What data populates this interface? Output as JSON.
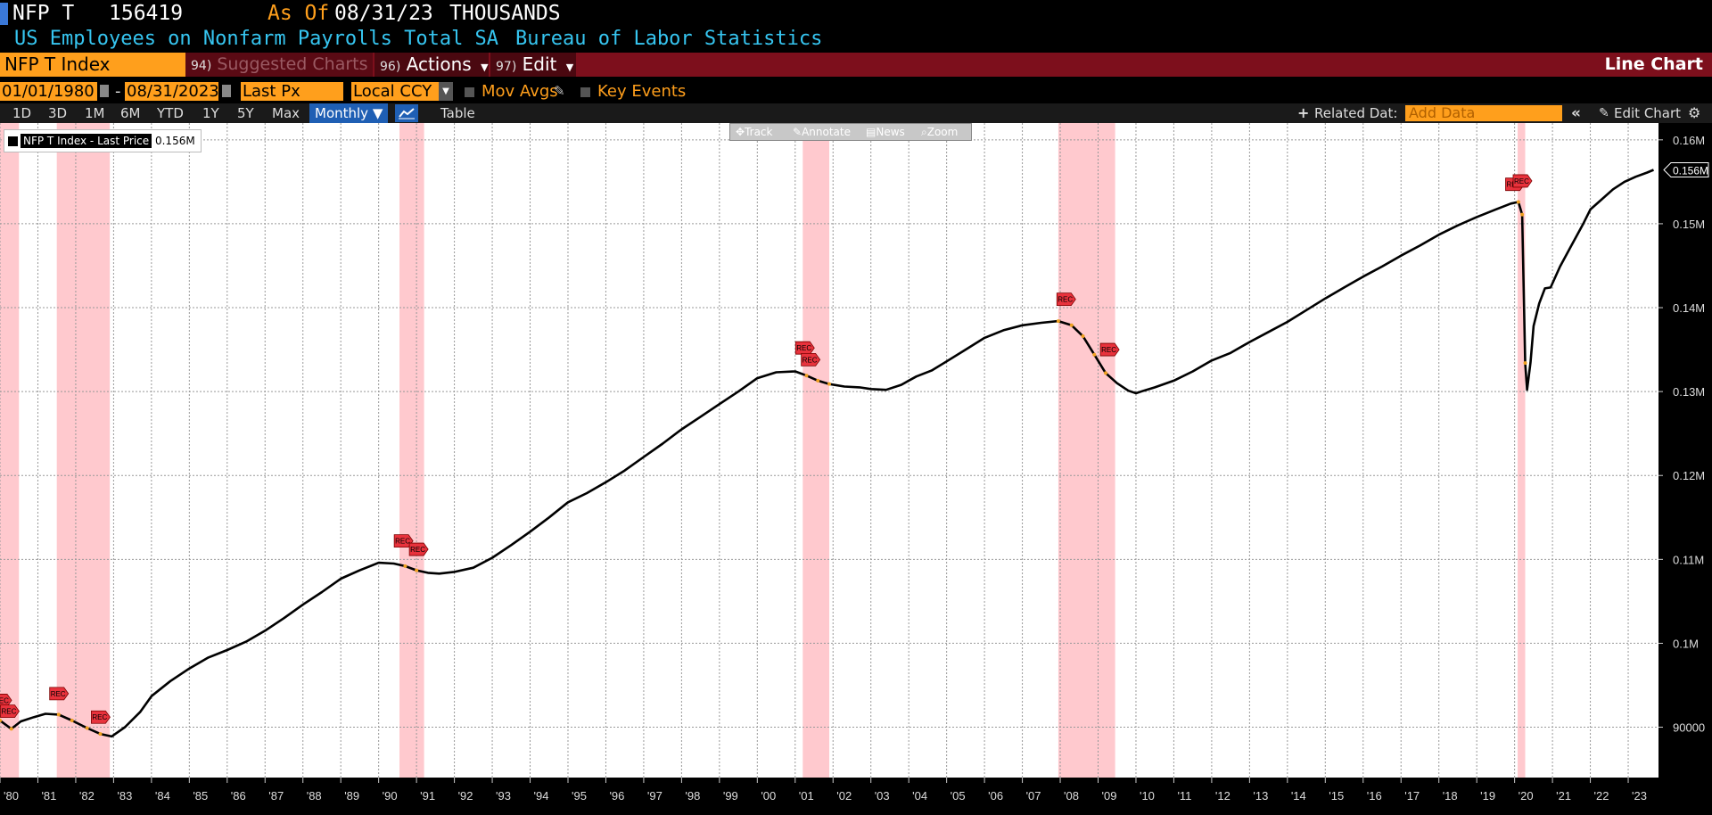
{
  "header": {
    "ticker": "NFP T",
    "value": "156419",
    "as_of_label": "As Of",
    "as_of_date": "08/31/23",
    "units": "THOUSANDS"
  },
  "description": {
    "title": "US Employees on Nonfarm Payrolls Total SA",
    "source": "Bureau of Labor Statistics"
  },
  "toolbar": {
    "ticker_index": "NFP T Index",
    "suggested_num": "94)",
    "suggested_label": "Suggested Charts",
    "actions_num": "96)",
    "actions_label": "Actions",
    "edit_num": "97)",
    "edit_label": "Edit",
    "chart_type": "Line Chart"
  },
  "params": {
    "start_date": "01/01/1980",
    "separator": "-",
    "end_date": "08/31/2023",
    "field": "Last Px",
    "currency": "Local CCY",
    "mov_avgs": "Mov Avgs",
    "key_events": "Key Events"
  },
  "periods": {
    "tabs": [
      "1D",
      "3D",
      "1M",
      "6M",
      "YTD",
      "1Y",
      "5Y",
      "Max"
    ],
    "frequency": "Monthly",
    "table_label": "Table",
    "related_data": "Related Dat:",
    "add_data_placeholder": "Add Data",
    "edit_chart": "Edit Chart"
  },
  "tools": {
    "track": "Track",
    "annotate": "Annotate",
    "news": "News",
    "zoom": "Zoom"
  },
  "legend": {
    "series_name": "NFP T Index - Last Price",
    "last_value": "0.156M"
  },
  "colors": {
    "accent_orange": "#ff9f1c",
    "toolbar_red": "#7d0f1c",
    "title_cyan": "#36c5f0",
    "recession_band": "#ffc9ce",
    "event_marker": "#e8323c"
  },
  "icons": {
    "calendar": "calendar-icon",
    "dropdown": "chevron-down-icon",
    "plus": "plus-icon",
    "collapse": "double-chevron-left-icon",
    "pencil": "pencil-icon",
    "gear": "gear-icon",
    "line_chart": "line-chart-icon"
  },
  "chart_data": {
    "type": "line",
    "x_axis": {
      "range": [
        1980.0,
        2023.8
      ],
      "tick_labels": [
        "'80",
        "'81",
        "'82",
        "'83",
        "'84",
        "'85",
        "'86",
        "'87",
        "'88",
        "'89",
        "'90",
        "'91",
        "'92",
        "'93",
        "'94",
        "'95",
        "'96",
        "'97",
        "'98",
        "'99",
        "'00",
        "'01",
        "'02",
        "'03",
        "'04",
        "'05",
        "'06",
        "'07",
        "'08",
        "'09",
        "'10",
        "'11",
        "'12",
        "'13",
        "'14",
        "'15",
        "'16",
        "'17",
        "'18",
        "'19",
        "'20",
        "'21",
        "'22",
        "'23"
      ],
      "tick_years": [
        1980,
        1981,
        1982,
        1983,
        1984,
        1985,
        1986,
        1987,
        1988,
        1989,
        1990,
        1991,
        1992,
        1993,
        1994,
        1995,
        1996,
        1997,
        1998,
        1999,
        2000,
        2001,
        2002,
        2003,
        2004,
        2005,
        2006,
        2007,
        2008,
        2009,
        2010,
        2011,
        2012,
        2013,
        2014,
        2015,
        2016,
        2017,
        2018,
        2019,
        2020,
        2021,
        2022,
        2023
      ]
    },
    "y_axis": {
      "range": [
        84000,
        162000
      ],
      "ticks": [
        90000,
        100000,
        110000,
        120000,
        130000,
        140000,
        150000,
        160000
      ],
      "tick_labels": [
        "90000",
        "0.1M",
        "0.11M",
        "0.12M",
        "0.13M",
        "0.14M",
        "0.15M",
        "0.16M"
      ],
      "side": "right"
    },
    "grid": true,
    "legend_position": "top-left",
    "last_value_label": "0.156M",
    "last_value": 156419,
    "series": [
      {
        "name": "NFP T Index - Last Price",
        "x": [
          1980.0,
          1980.3,
          1980.55,
          1980.9,
          1981.2,
          1981.55,
          1981.9,
          1982.3,
          1982.65,
          1982.95,
          1983.3,
          1983.7,
          1984.0,
          1984.5,
          1985.0,
          1985.5,
          1986.0,
          1986.5,
          1987.0,
          1987.5,
          1988.0,
          1988.5,
          1989.0,
          1989.5,
          1990.0,
          1990.4,
          1990.7,
          1991.0,
          1991.3,
          1991.6,
          1992.0,
          1992.5,
          1993.0,
          1993.5,
          1994.0,
          1994.5,
          1995.0,
          1995.5,
          1996.0,
          1996.5,
          1997.0,
          1997.5,
          1998.0,
          1998.5,
          1999.0,
          1999.5,
          2000.0,
          2000.5,
          2001.0,
          2001.3,
          2001.6,
          2001.9,
          2002.3,
          2002.7,
          2003.0,
          2003.4,
          2003.8,
          2004.2,
          2004.6,
          2005.0,
          2005.5,
          2006.0,
          2006.5,
          2007.0,
          2007.5,
          2007.95,
          2008.3,
          2008.6,
          2008.9,
          2009.2,
          2009.5,
          2009.8,
          2010.0,
          2010.2,
          2010.5,
          2011.0,
          2011.5,
          2012.0,
          2012.5,
          2013.0,
          2013.5,
          2014.0,
          2014.5,
          2015.0,
          2015.5,
          2016.0,
          2016.5,
          2017.0,
          2017.5,
          2018.0,
          2018.5,
          2019.0,
          2019.5,
          2019.9,
          2020.1,
          2020.2,
          2020.28,
          2020.33,
          2020.42,
          2020.5,
          2020.65,
          2020.8,
          2020.95,
          2021.2,
          2021.5,
          2021.8,
          2022.0,
          2022.3,
          2022.6,
          2022.9,
          2023.2,
          2023.5,
          2023.67
        ],
        "values": [
          90800,
          89800,
          90700,
          91200,
          91600,
          91500,
          90800,
          89900,
          89200,
          88900,
          90000,
          91800,
          93700,
          95500,
          97000,
          98300,
          99200,
          100200,
          101500,
          103000,
          104600,
          106100,
          107700,
          108700,
          109600,
          109500,
          109200,
          108700,
          108400,
          108300,
          108500,
          109000,
          110200,
          111700,
          113300,
          115000,
          116800,
          117900,
          119200,
          120600,
          122200,
          123800,
          125500,
          127000,
          128500,
          130000,
          131600,
          132300,
          132400,
          131900,
          131300,
          130900,
          130600,
          130500,
          130300,
          130200,
          130800,
          131800,
          132500,
          133600,
          135000,
          136400,
          137300,
          137900,
          138200,
          138400,
          137900,
          136600,
          134400,
          132200,
          131000,
          130100,
          129800,
          130100,
          130500,
          131300,
          132400,
          133700,
          134600,
          135900,
          137100,
          138300,
          139700,
          141100,
          142400,
          143700,
          144900,
          146200,
          147400,
          148700,
          149800,
          150800,
          151700,
          152400,
          152600,
          151100,
          133400,
          130200,
          133500,
          137800,
          140500,
          142300,
          142400,
          144900,
          147400,
          149900,
          151700,
          152900,
          154100,
          155000,
          155600,
          156100,
          156419
        ]
      }
    ],
    "recessions": [
      {
        "start": 1980.0,
        "end": 1980.5
      },
      {
        "start": 1981.5,
        "end": 1982.9
      },
      {
        "start": 1990.55,
        "end": 1991.2
      },
      {
        "start": 2001.2,
        "end": 2001.9
      },
      {
        "start": 2007.95,
        "end": 2009.45
      },
      {
        "start": 2020.08,
        "end": 2020.28
      }
    ],
    "annotations": [
      {
        "label": "REC",
        "x": 1980.0,
        "y": 93200
      },
      {
        "label": "REC",
        "x": 1980.2,
        "y": 91900
      },
      {
        "label": "REC",
        "x": 1981.5,
        "y": 94000
      },
      {
        "label": "REC",
        "x": 1982.6,
        "y": 91200
      },
      {
        "label": "REC",
        "x": 1990.6,
        "y": 112200
      },
      {
        "label": "REC",
        "x": 1991.0,
        "y": 111200
      },
      {
        "label": "REC",
        "x": 2001.2,
        "y": 135200
      },
      {
        "label": "REC",
        "x": 2001.35,
        "y": 133800
      },
      {
        "label": "REC",
        "x": 2008.1,
        "y": 141000
      },
      {
        "label": "REC",
        "x": 2009.25,
        "y": 135000
      },
      {
        "label": "REC",
        "x": 2019.95,
        "y": 154700
      },
      {
        "label": "REC",
        "x": 2020.15,
        "y": 155100
      }
    ]
  }
}
